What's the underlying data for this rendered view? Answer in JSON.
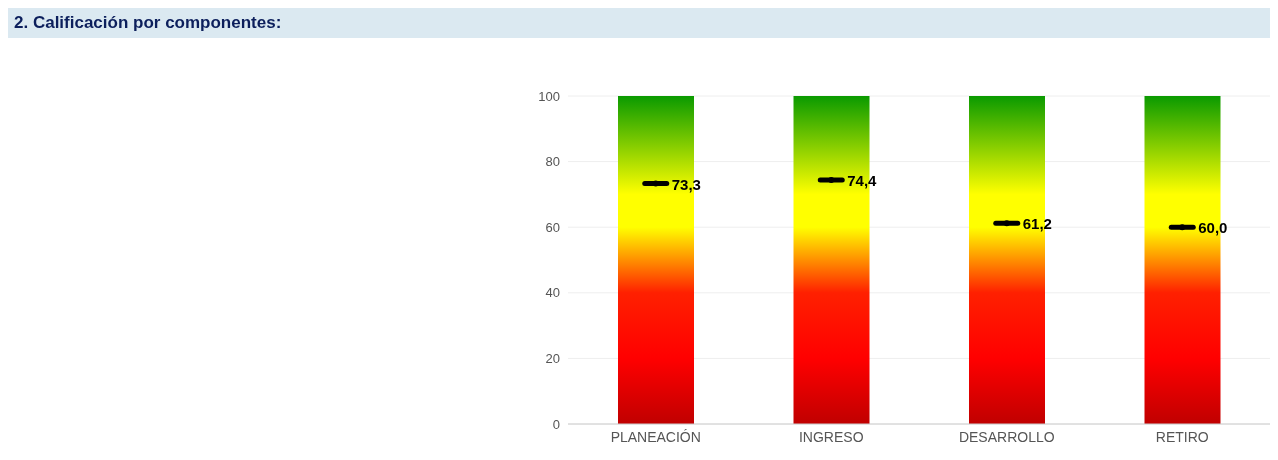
{
  "chart_data": {
    "type": "bar",
    "title": "2. Calificación por componentes:",
    "categories": [
      "PLANEACIÓN",
      "INGRESO",
      "DESARROLLO",
      "RETIRO"
    ],
    "series": [
      {
        "type": "bar",
        "color": "#ffff00",
        "values": [
          100,
          100,
          100,
          100
        ]
      },
      {
        "type": "scatter",
        "color": "#000000",
        "values": [
          73.3,
          74.4,
          61.2,
          60.0
        ],
        "value_labels": [
          "73,3",
          "74,4",
          "61,2",
          "60,0"
        ]
      }
    ],
    "ylim": [
      0,
      100
    ],
    "yticks": [
      0,
      20,
      40,
      60,
      80,
      100
    ],
    "grid": "y",
    "legend": false
  }
}
